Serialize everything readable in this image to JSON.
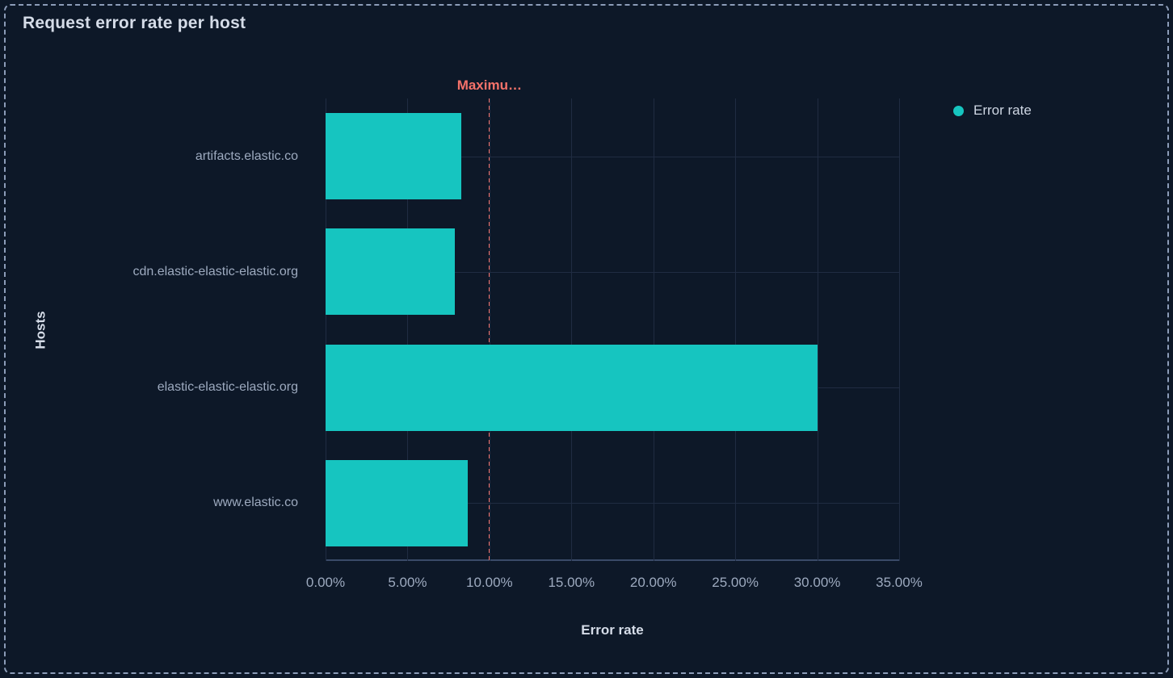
{
  "panel": {
    "title": "Request error rate per host"
  },
  "legend": {
    "items": [
      {
        "label": "Error rate",
        "color": "#16c5c0"
      }
    ]
  },
  "chart_data": {
    "type": "bar",
    "orientation": "horizontal",
    "title": "Request error rate per host",
    "categories": [
      "artifacts.elastic.co",
      "cdn.elastic-elastic-elastic.org",
      "elastic-elastic-elastic.org",
      "www.elastic.co"
    ],
    "series": [
      {
        "name": "Error rate",
        "values": [
          8.3,
          7.9,
          30.0,
          8.7
        ],
        "unit": "percent"
      }
    ],
    "xlabel": "Error rate",
    "ylabel": "Hosts",
    "xlim": [
      0,
      35
    ],
    "x_ticks": [
      "0.00%",
      "5.00%",
      "10.00%",
      "15.00%",
      "20.00%",
      "25.00%",
      "30.00%",
      "35.00%"
    ],
    "threshold": {
      "value": 10,
      "label": "Maximu…",
      "color": "#f6726a"
    },
    "grid": true,
    "legend_position": "top-right",
    "bar_color": "#16c5c0"
  },
  "colors": {
    "background": "#0d1828",
    "panel_border": "#8c9cb8",
    "gridline": "#202c42",
    "axis_line": "#3a4a68",
    "title_text": "#d5dce8",
    "tick_text": "#9daabf",
    "bar": "#16c5c0",
    "threshold": "#f6726a"
  }
}
